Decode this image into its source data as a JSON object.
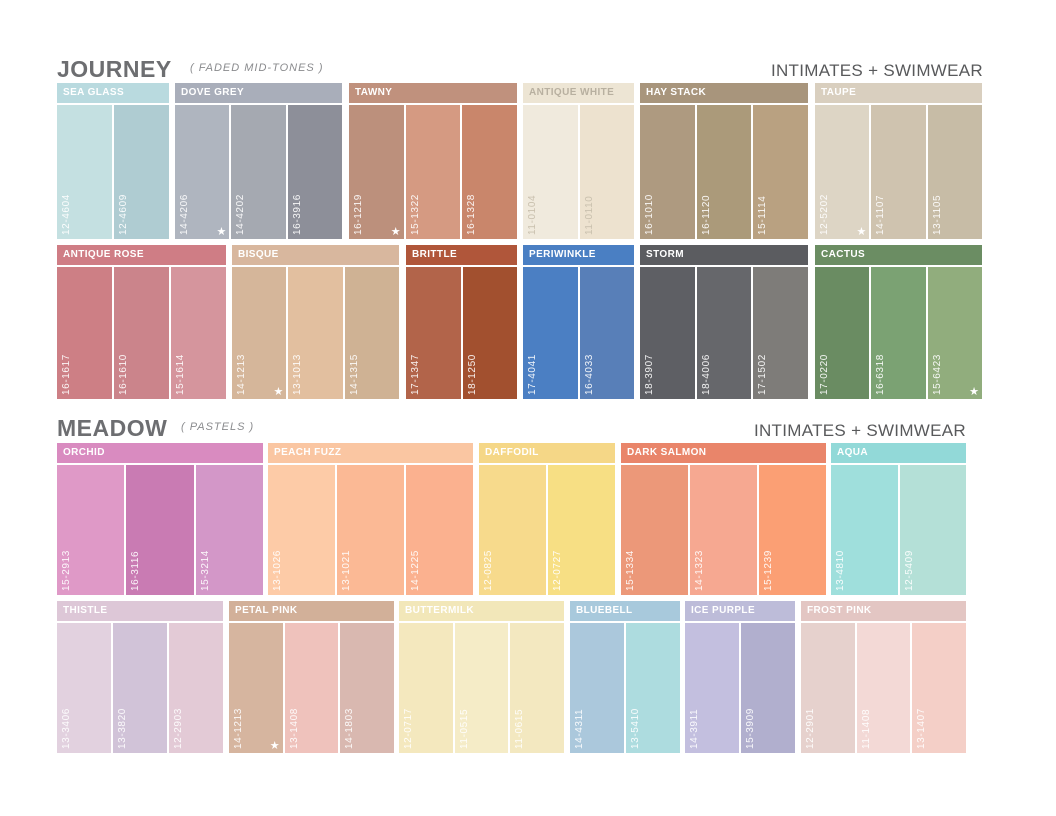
{
  "sections": [
    {
      "title": "JOURNEY",
      "subtitle": "( FADED MID-TONES )",
      "category": "INTIMATES + SWIMWEAR",
      "groups": [
        {
          "name": "SEA GLASS",
          "header_color": "#b9dadf",
          "text_color": "light",
          "swatches": [
            {
              "code": "12-4604",
              "color": "#c4e0e1"
            },
            {
              "code": "12-4609",
              "color": "#afccd2"
            }
          ]
        },
        {
          "name": "DOVE GREY",
          "header_color": "#a9aeba",
          "text_color": "light",
          "swatches": [
            {
              "code": "14-4206",
              "color": "#afb5bf",
              "star": true
            },
            {
              "code": "14-4202",
              "color": "#a5a9b1"
            },
            {
              "code": "16-3916",
              "color": "#8d8f99"
            }
          ]
        },
        {
          "name": "TAWNY",
          "header_color": "#c0917d",
          "text_color": "light",
          "swatches": [
            {
              "code": "16-1219",
              "color": "#bc907c",
              "star": true
            },
            {
              "code": "15-1322",
              "color": "#d59a82"
            },
            {
              "code": "16-1328",
              "color": "#c9866b"
            }
          ]
        },
        {
          "name": "ANTIQUE WHITE",
          "header_color": "#ede5d4",
          "text_color": "dark",
          "swatches": [
            {
              "code": "11-0104",
              "color": "#f0eadd"
            },
            {
              "code": "11-0110",
              "color": "#ede2cf"
            }
          ]
        },
        {
          "name": "HAY STACK",
          "header_color": "#a8957c",
          "text_color": "light",
          "swatches": [
            {
              "code": "16-1010",
              "color": "#ae9a80"
            },
            {
              "code": "16-1120",
              "color": "#ab9a7a"
            },
            {
              "code": "15-1114",
              "color": "#b9a181"
            }
          ]
        },
        {
          "name": "TAUPE",
          "header_color": "#d9cfbf",
          "text_color": "light",
          "swatches": [
            {
              "code": "12-5202",
              "color": "#ddd5c5",
              "star": true
            },
            {
              "code": "14-1107",
              "color": "#cfc3af"
            },
            {
              "code": "13-1105",
              "color": "#c7bca6"
            }
          ]
        },
        {
          "name": "ANTIQUE ROSE",
          "header_color": "#cf7d85",
          "text_color": "light",
          "swatches": [
            {
              "code": "16-1617",
              "color": "#cd7f85"
            },
            {
              "code": "16-1610",
              "color": "#cb848b"
            },
            {
              "code": "15-1614",
              "color": "#d5959d"
            }
          ]
        },
        {
          "name": "BISQUE",
          "header_color": "#d8b79e",
          "text_color": "light",
          "swatches": [
            {
              "code": "14-1213",
              "color": "#d5b69a",
              "star": true
            },
            {
              "code": "13-1013",
              "color": "#e2bf9f"
            },
            {
              "code": "14-1315",
              "color": "#cfb294"
            }
          ]
        },
        {
          "name": "BRITTLE",
          "header_color": "#b0563a",
          "text_color": "light",
          "swatches": [
            {
              "code": "17-1347",
              "color": "#b2644a"
            },
            {
              "code": "18-1250",
              "color": "#a2502f"
            }
          ]
        },
        {
          "name": "PERIWINKLE",
          "header_color": "#4a7fc3",
          "text_color": "light",
          "swatches": [
            {
              "code": "17-4041",
              "color": "#4b7fc3"
            },
            {
              "code": "16-4033",
              "color": "#587fb8"
            }
          ]
        },
        {
          "name": "STORM",
          "header_color": "#5b5c60",
          "text_color": "light",
          "swatches": [
            {
              "code": "18-3907",
              "color": "#5e5f64"
            },
            {
              "code": "18-4006",
              "color": "#66676b"
            },
            {
              "code": "17-1502",
              "color": "#7e7c79"
            }
          ]
        },
        {
          "name": "CACTUS",
          "header_color": "#6b8d63",
          "text_color": "light",
          "swatches": [
            {
              "code": "17-0220",
              "color": "#6a8c62"
            },
            {
              "code": "16-6318",
              "color": "#7ba273"
            },
            {
              "code": "15-6423",
              "color": "#91ad7d",
              "star": true
            }
          ]
        }
      ]
    },
    {
      "title": "MEADOW",
      "subtitle": "( PASTELS )",
      "category": "INTIMATES + SWIMWEAR",
      "groups": [
        {
          "name": "ORCHID",
          "header_color": "#d98bc0",
          "text_color": "light",
          "swatches": [
            {
              "code": "15-2913",
              "color": "#df99c7"
            },
            {
              "code": "16-3116",
              "color": "#c97bb3"
            },
            {
              "code": "15-3214",
              "color": "#d397c8"
            }
          ]
        },
        {
          "name": "PEACH FUZZ",
          "header_color": "#fac6a2",
          "text_color": "light",
          "swatches": [
            {
              "code": "13-1026",
              "color": "#fdcba7"
            },
            {
              "code": "13-1021",
              "color": "#fbb995"
            },
            {
              "code": "14-1225",
              "color": "#fbb18f"
            }
          ]
        },
        {
          "name": "DAFFODIL",
          "header_color": "#f5d787",
          "text_color": "light",
          "swatches": [
            {
              "code": "12-0825",
              "color": "#f7da8c"
            },
            {
              "code": "12-0727",
              "color": "#f7df84"
            }
          ]
        },
        {
          "name": "DARK SALMON",
          "header_color": "#e9856a",
          "text_color": "light",
          "swatches": [
            {
              "code": "15-1334",
              "color": "#ec9879"
            },
            {
              "code": "14-1323",
              "color": "#f6a891"
            },
            {
              "code": "15-1239",
              "color": "#fb9f74"
            }
          ]
        },
        {
          "name": "AQUA",
          "header_color": "#92d9d8",
          "text_color": "light",
          "swatches": [
            {
              "code": "13-4810",
              "color": "#9fdfdc"
            },
            {
              "code": "12-5409",
              "color": "#b4e0d7"
            }
          ]
        },
        {
          "name": "THISTLE",
          "header_color": "#ddc7d7",
          "text_color": "light",
          "swatches": [
            {
              "code": "13-3406",
              "color": "#e2d1df"
            },
            {
              "code": "13-3820",
              "color": "#d1c3d8"
            },
            {
              "code": "12-2903",
              "color": "#e3cad6"
            }
          ]
        },
        {
          "name": "PETAL PINK",
          "header_color": "#d2b099",
          "text_color": "light",
          "swatches": [
            {
              "code": "14-1213",
              "color": "#d6b59f",
              "star": true
            },
            {
              "code": "13-1408",
              "color": "#efc2bc"
            },
            {
              "code": "14-1803",
              "color": "#d9b8b0"
            }
          ]
        },
        {
          "name": "BUTTERMILK",
          "header_color": "#f2e7b9",
          "text_color": "light",
          "swatches": [
            {
              "code": "12-0717",
              "color": "#f4e8be"
            },
            {
              "code": "11-0515",
              "color": "#f5ecc7"
            },
            {
              "code": "11-0615",
              "color": "#f3e8c0"
            }
          ]
        },
        {
          "name": "BLUEBELL",
          "header_color": "#a8c9dc",
          "text_color": "light",
          "swatches": [
            {
              "code": "14-4311",
              "color": "#abc8dc"
            },
            {
              "code": "13-5410",
              "color": "#addcdf"
            }
          ]
        },
        {
          "name": "ICE PURPLE",
          "header_color": "#bdbcd9",
          "text_color": "light",
          "swatches": [
            {
              "code": "14-3911",
              "color": "#c3bfdf"
            },
            {
              "code": "15-3909",
              "color": "#b1afce"
            }
          ]
        },
        {
          "name": "FROST PINK",
          "header_color": "#e3c6c3",
          "text_color": "light",
          "swatches": [
            {
              "code": "12-2901",
              "color": "#e6d1cd"
            },
            {
              "code": "11-1408",
              "color": "#f3d9d6"
            },
            {
              "code": "13-1407",
              "color": "#f4cfc7"
            }
          ]
        }
      ]
    }
  ]
}
